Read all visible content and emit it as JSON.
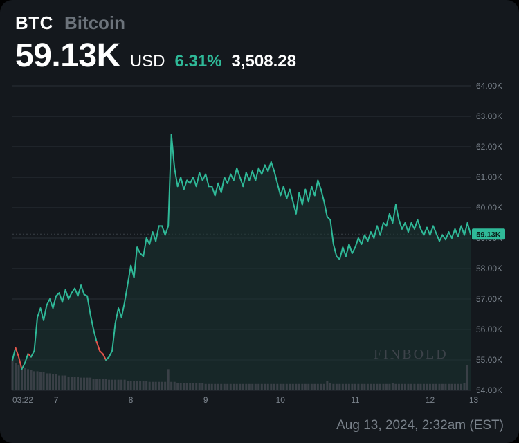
{
  "header": {
    "ticker": "BTC",
    "name": "Bitcoin"
  },
  "price": {
    "value": "59.13K",
    "currency": "USD",
    "pct_change": "6.31%",
    "pct_color": "#2fb998",
    "abs_change": "3,508.28"
  },
  "footer": {
    "timestamp": "Aug 13, 2024, 2:32am (EST)"
  },
  "watermark": {
    "text": "FINBOLD",
    "color": "#3d434a"
  },
  "chart": {
    "type": "line+area+volume",
    "background": "#14181d",
    "grid_color": "#2a2f36",
    "axis_text_color": "#7a828b",
    "axis_fontsize": 12,
    "line_width": 2,
    "up_color": "#2fb998",
    "down_color": "#e4544b",
    "area_fill": "#1a3531",
    "area_opacity": 0.55,
    "dotted_line_color": "#3a4047",
    "volume_bar_color": "#3a4047",
    "volume_bar_width": 3,
    "current_label_bg": "#2fb998",
    "current_label_text": "59.13K",
    "y_axis": {
      "min": 54000,
      "max": 64000,
      "ticks": [
        54000,
        55000,
        56000,
        57000,
        58000,
        59000,
        60000,
        61000,
        62000,
        63000,
        64000
      ],
      "tick_labels": [
        "54.00K",
        "55.00K",
        "56.00K",
        "57.00K",
        "58.00K",
        "59.00K",
        "60.00K",
        "61.00K",
        "62.00K",
        "63.00K",
        "64.00K"
      ]
    },
    "x_axis": {
      "min": 0,
      "max": 148,
      "ticks": [
        0,
        16,
        40,
        64,
        88,
        112,
        136
      ],
      "tick_labels": [
        "03:22",
        "7",
        "8",
        "9",
        "10",
        "11",
        "12",
        "13"
      ],
      "tick_positions_override": [
        0,
        14,
        38,
        62,
        86,
        110,
        134,
        148
      ]
    },
    "current_value": 59130,
    "series": [
      55000,
      55400,
      55100,
      54700,
      54900,
      55200,
      55100,
      55300,
      56400,
      56700,
      56300,
      56800,
      57000,
      56700,
      57100,
      57200,
      56900,
      57300,
      57000,
      57200,
      57350,
      57100,
      57450,
      57150,
      57100,
      56500,
      56000,
      55600,
      55300,
      55200,
      55000,
      55100,
      55300,
      56200,
      56700,
      56400,
      56900,
      57500,
      58100,
      57700,
      58700,
      58500,
      58400,
      59000,
      58800,
      59200,
      58900,
      59400,
      59400,
      59100,
      59400,
      62400,
      61300,
      60700,
      61000,
      60600,
      60900,
      60800,
      61000,
      60700,
      61150,
      60900,
      61100,
      60700,
      60700,
      60400,
      60800,
      60500,
      61000,
      60800,
      61100,
      60900,
      61300,
      61000,
      60700,
      61150,
      60900,
      61200,
      60900,
      61300,
      61100,
      61400,
      61200,
      61500,
      61200,
      60800,
      60400,
      60700,
      60300,
      60600,
      60200,
      59800,
      60500,
      60100,
      60600,
      60200,
      60700,
      60400,
      60900,
      60600,
      60200,
      59700,
      59600,
      58800,
      58400,
      58300,
      58700,
      58400,
      58800,
      58500,
      58700,
      59000,
      58800,
      59100,
      58900,
      59200,
      59000,
      59400,
      59100,
      59500,
      59400,
      59800,
      59500,
      60100,
      59600,
      59300,
      59500,
      59200,
      59500,
      59300,
      59600,
      59300,
      59100,
      59350,
      59100,
      59400,
      59150,
      58900,
      59100,
      58950,
      59200,
      59000,
      59300,
      59050,
      59400,
      59100,
      59500,
      59130
    ],
    "volume": [
      60,
      52,
      48,
      44,
      42,
      40,
      38,
      36,
      36,
      34,
      34,
      32,
      32,
      30,
      30,
      28,
      28,
      28,
      26,
      26,
      26,
      26,
      24,
      24,
      24,
      24,
      22,
      22,
      22,
      22,
      22,
      20,
      20,
      20,
      20,
      20,
      20,
      18,
      18,
      18,
      18,
      18,
      18,
      18,
      16,
      16,
      16,
      16,
      16,
      16,
      40,
      16,
      16,
      14,
      14,
      14,
      14,
      14,
      14,
      14,
      14,
      14,
      12,
      12,
      12,
      12,
      12,
      12,
      12,
      12,
      12,
      12,
      12,
      12,
      12,
      12,
      12,
      12,
      12,
      12,
      12,
      12,
      12,
      12,
      12,
      12,
      12,
      12,
      12,
      12,
      12,
      12,
      12,
      12,
      12,
      12,
      12,
      12,
      12,
      12,
      12,
      18,
      14,
      12,
      12,
      12,
      12,
      12,
      12,
      12,
      12,
      12,
      12,
      12,
      12,
      12,
      12,
      12,
      12,
      12,
      12,
      12,
      14,
      12,
      12,
      12,
      12,
      12,
      12,
      12,
      12,
      12,
      12,
      12,
      12,
      12,
      12,
      12,
      12,
      12,
      12,
      12,
      12,
      12,
      12,
      14,
      48
    ]
  }
}
